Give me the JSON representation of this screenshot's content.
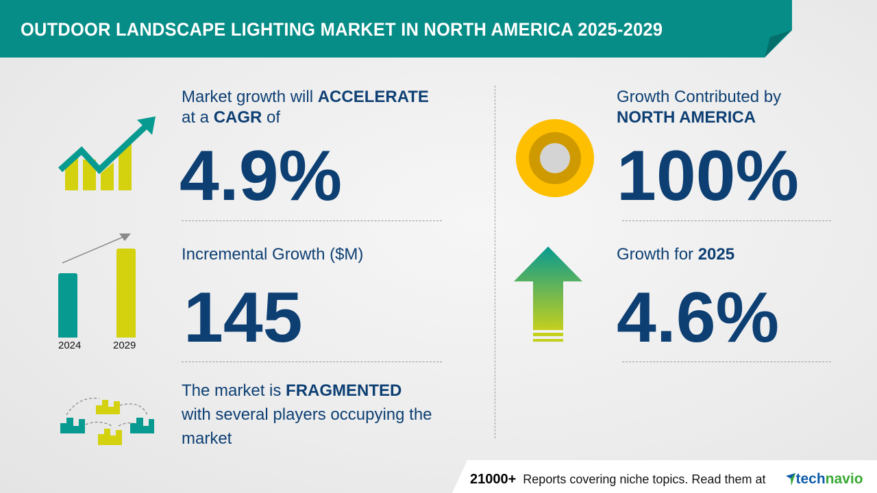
{
  "header": {
    "title": "OUTDOOR LANDSCAPE LIGHTING MARKET IN NORTH AMERICA 2025-2029"
  },
  "cagr": {
    "line1_pre": "Market growth will ",
    "line1_bold": "ACCELERATE",
    "line2_pre": "at a ",
    "line2_bold": "CAGR",
    "line2_post": " of",
    "value": "4.9%"
  },
  "incremental": {
    "label": "Incremental Growth ($M)",
    "value": "145",
    "bar_years": [
      "2024",
      "2029"
    ]
  },
  "fragmented": {
    "line1_pre": "The market is ",
    "line1_bold": "FRAGMENTED",
    "line2": "with several players occupying the",
    "line3": "market"
  },
  "contribution": {
    "line1": "Growth Contributed by",
    "line2_bold": "NORTH AMERICA",
    "value": "100%"
  },
  "growth_year": {
    "label_pre": "Growth for ",
    "label_bold": "2025",
    "value": "4.6%"
  },
  "footer": {
    "count": "21000+",
    "text": "Reports covering niche topics. Read them at",
    "brand_part1": "tech",
    "brand_part2": "navio"
  },
  "colors": {
    "teal": "#078d87",
    "yellow": "#d4d10f",
    "navy": "#0d3f73",
    "gold": "#fdbf00"
  }
}
